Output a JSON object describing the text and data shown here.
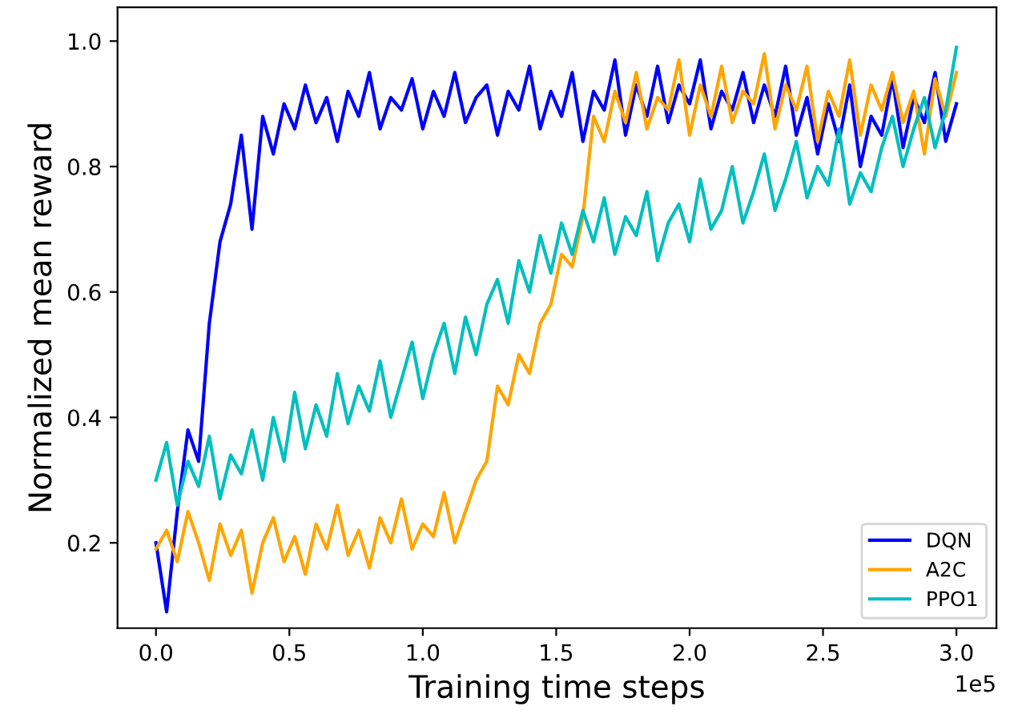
{
  "chart_data": {
    "type": "line",
    "xlabel": "Training time steps",
    "ylabel": "Normalized mean reward",
    "x": [
      0.0,
      0.04,
      0.08,
      0.12,
      0.16,
      0.2,
      0.24,
      0.28,
      0.32,
      0.36,
      0.4,
      0.44,
      0.48,
      0.52,
      0.56,
      0.6,
      0.64,
      0.68,
      0.72,
      0.76,
      0.8,
      0.84,
      0.88,
      0.92,
      0.96,
      1.0,
      1.04,
      1.08,
      1.12,
      1.16,
      1.2,
      1.24,
      1.28,
      1.32,
      1.36,
      1.4,
      1.44,
      1.48,
      1.52,
      1.56,
      1.6,
      1.64,
      1.68,
      1.72,
      1.76,
      1.8,
      1.84,
      1.88,
      1.92,
      1.96,
      2.0,
      2.04,
      2.08,
      2.12,
      2.16,
      2.2,
      2.24,
      2.28,
      2.32,
      2.36,
      2.4,
      2.44,
      2.48,
      2.52,
      2.56,
      2.6,
      2.64,
      2.68,
      2.72,
      2.76,
      2.8,
      2.84,
      2.88,
      2.92,
      2.96,
      3.0
    ],
    "series": [
      {
        "name": "DQN",
        "color": "#0000ff",
        "values": [
          0.2,
          0.09,
          0.25,
          0.38,
          0.33,
          0.55,
          0.68,
          0.74,
          0.85,
          0.7,
          0.88,
          0.82,
          0.9,
          0.86,
          0.93,
          0.87,
          0.91,
          0.84,
          0.92,
          0.88,
          0.95,
          0.86,
          0.91,
          0.89,
          0.94,
          0.86,
          0.92,
          0.88,
          0.95,
          0.87,
          0.91,
          0.93,
          0.85,
          0.92,
          0.89,
          0.96,
          0.86,
          0.92,
          0.88,
          0.95,
          0.84,
          0.92,
          0.89,
          0.97,
          0.85,
          0.93,
          0.88,
          0.96,
          0.87,
          0.93,
          0.9,
          0.97,
          0.86,
          0.92,
          0.89,
          0.95,
          0.87,
          0.93,
          0.88,
          0.96,
          0.85,
          0.91,
          0.82,
          0.9,
          0.84,
          0.93,
          0.8,
          0.88,
          0.85,
          0.94,
          0.83,
          0.91,
          0.87,
          0.95,
          0.84,
          0.9
        ]
      },
      {
        "name": "A2C",
        "color": "#ffa500",
        "values": [
          0.19,
          0.22,
          0.17,
          0.25,
          0.2,
          0.14,
          0.23,
          0.18,
          0.22,
          0.12,
          0.2,
          0.24,
          0.17,
          0.21,
          0.15,
          0.23,
          0.19,
          0.26,
          0.18,
          0.22,
          0.16,
          0.24,
          0.2,
          0.27,
          0.19,
          0.23,
          0.21,
          0.28,
          0.2,
          0.25,
          0.3,
          0.33,
          0.45,
          0.42,
          0.5,
          0.47,
          0.55,
          0.58,
          0.66,
          0.64,
          0.72,
          0.88,
          0.84,
          0.92,
          0.87,
          0.95,
          0.86,
          0.91,
          0.89,
          0.97,
          0.85,
          0.93,
          0.88,
          0.96,
          0.87,
          0.92,
          0.9,
          0.98,
          0.86,
          0.93,
          0.89,
          0.96,
          0.84,
          0.92,
          0.88,
          0.97,
          0.85,
          0.93,
          0.89,
          0.95,
          0.87,
          0.92,
          0.82,
          0.94,
          0.88,
          0.95
        ]
      },
      {
        "name": "PPO1",
        "color": "#00bfbf",
        "values": [
          0.3,
          0.36,
          0.26,
          0.33,
          0.29,
          0.37,
          0.27,
          0.34,
          0.31,
          0.38,
          0.3,
          0.4,
          0.33,
          0.44,
          0.35,
          0.42,
          0.37,
          0.47,
          0.39,
          0.45,
          0.41,
          0.49,
          0.4,
          0.46,
          0.52,
          0.43,
          0.5,
          0.55,
          0.47,
          0.56,
          0.5,
          0.58,
          0.62,
          0.55,
          0.65,
          0.6,
          0.69,
          0.63,
          0.71,
          0.66,
          0.73,
          0.68,
          0.75,
          0.66,
          0.72,
          0.69,
          0.76,
          0.65,
          0.71,
          0.74,
          0.68,
          0.78,
          0.7,
          0.73,
          0.8,
          0.71,
          0.76,
          0.82,
          0.73,
          0.78,
          0.84,
          0.75,
          0.8,
          0.77,
          0.86,
          0.74,
          0.79,
          0.76,
          0.83,
          0.88,
          0.8,
          0.86,
          0.91,
          0.83,
          0.89,
          0.99
        ]
      }
    ],
    "xlim": [
      -0.144,
      3.15
    ],
    "xticks": [
      {
        "value": 0,
        "label": "0.0"
      },
      0.5,
      {
        "value": 1,
        "label": "1.0"
      },
      1.5,
      {
        "value": 2,
        "label": "2.0"
      },
      2.5,
      {
        "value": 3,
        "label": "3.0"
      }
    ],
    "ylim": [
      0.064,
      1.054
    ],
    "yticks": [
      0.2,
      0.4,
      0.6,
      0.8,
      {
        "value": 1,
        "label": "1.0"
      }
    ],
    "annotations": [
      "1e5"
    ],
    "legend": "lower right",
    "grid": false,
    "marker": "none",
    "line_style": "solid"
  }
}
